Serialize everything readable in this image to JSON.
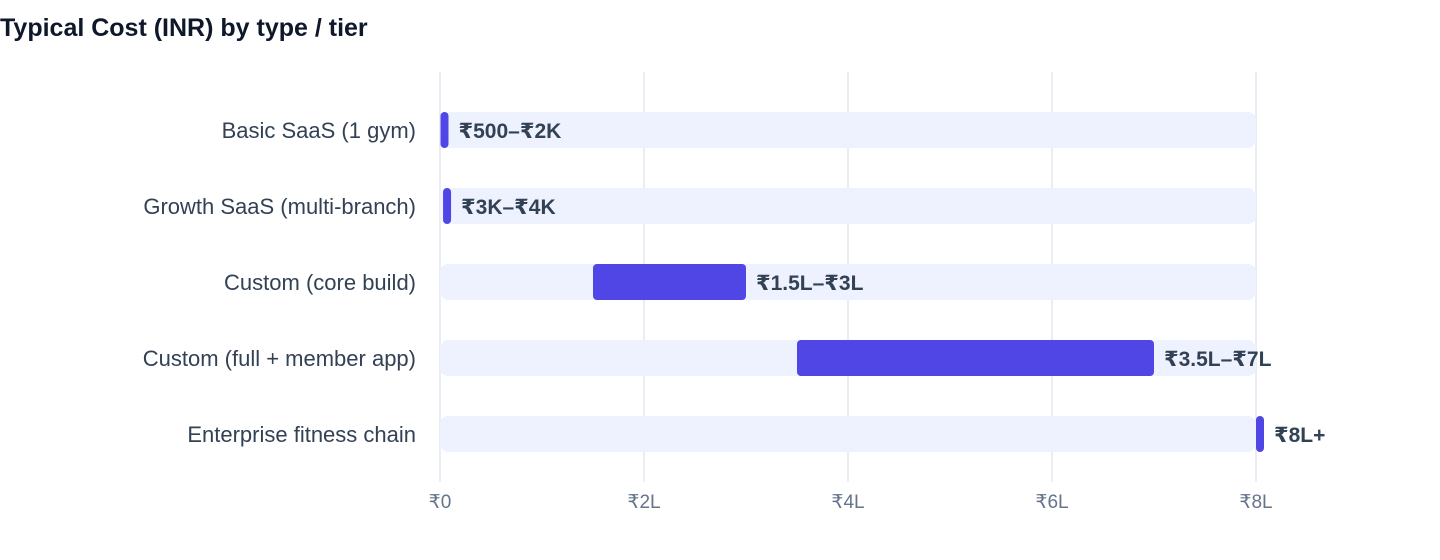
{
  "chart_data": {
    "type": "bar",
    "orientation": "horizontal-range",
    "title": "Typical Cost (INR) by type / tier",
    "xlabel": "",
    "ylabel": "",
    "xlim": [
      0,
      800000
    ],
    "grid": true,
    "legend": "none",
    "x_ticks": [
      {
        "value": 0,
        "label": "₹0"
      },
      {
        "value": 200000,
        "label": "₹2L"
      },
      {
        "value": 400000,
        "label": "₹4L"
      },
      {
        "value": 600000,
        "label": "₹6L"
      },
      {
        "value": 800000,
        "label": "₹8L"
      }
    ],
    "categories": [
      "Basic SaaS (1 gym)",
      "Growth SaaS (multi-branch)",
      "Custom (core build)",
      "Custom (full + member app)",
      "Enterprise fitness chain"
    ],
    "ranges": [
      {
        "low": 500,
        "high": 2000,
        "label": "₹500–₹2K"
      },
      {
        "low": 3000,
        "high": 4000,
        "label": "₹3K–₹4K"
      },
      {
        "low": 150000,
        "high": 300000,
        "label": "₹1.5L–₹3L"
      },
      {
        "low": 350000,
        "high": 700000,
        "label": "₹3.5L–₹7L"
      },
      {
        "low": 800000,
        "high": 800000,
        "label": "₹8L+"
      }
    ],
    "colors": {
      "bar": "#4f46e5",
      "track": "#eef2ff",
      "grid": "#e2e8f0",
      "axis_text": "#64748b",
      "label_text": "#334155"
    }
  }
}
